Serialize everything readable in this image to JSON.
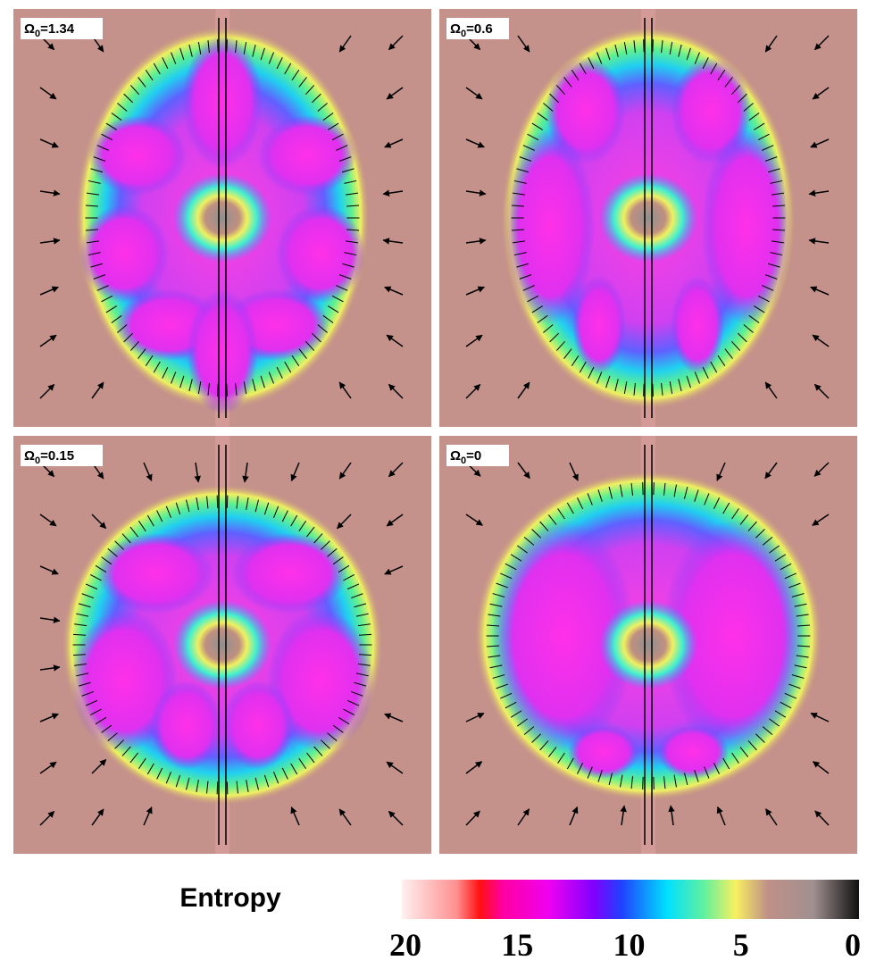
{
  "panels": [
    {
      "symbol": "Ω",
      "subscript": "0",
      "value": "=1.34"
    },
    {
      "symbol": "Ω",
      "subscript": "0",
      "value": "=0.6"
    },
    {
      "symbol": "Ω",
      "subscript": "0",
      "value": "=0.15"
    },
    {
      "symbol": "Ω",
      "subscript": "0",
      "value": "=0"
    }
  ],
  "colorbar": {
    "title": "Entropy",
    "ticks": [
      20,
      15,
      10,
      5,
      0
    ]
  }
}
